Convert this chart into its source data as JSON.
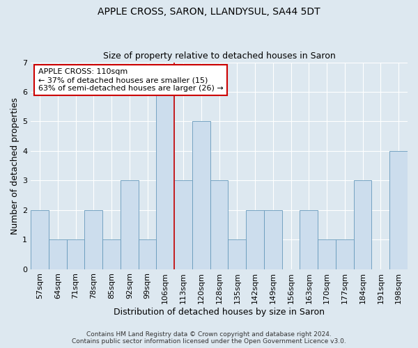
{
  "title": "APPLE CROSS, SARON, LLANDYSUL, SA44 5DT",
  "subtitle": "Size of property relative to detached houses in Saron",
  "xlabel": "Distribution of detached houses by size in Saron",
  "ylabel": "Number of detached properties",
  "categories": [
    "57sqm",
    "64sqm",
    "71sqm",
    "78sqm",
    "85sqm",
    "92sqm",
    "99sqm",
    "106sqm",
    "113sqm",
    "120sqm",
    "128sqm",
    "135sqm",
    "142sqm",
    "149sqm",
    "156sqm",
    "163sqm",
    "170sqm",
    "177sqm",
    "184sqm",
    "191sqm",
    "198sqm"
  ],
  "values": [
    2,
    1,
    1,
    2,
    1,
    3,
    1,
    6,
    3,
    5,
    3,
    1,
    2,
    2,
    0,
    2,
    1,
    1,
    3,
    0,
    4
  ],
  "bar_color": "#ccdded",
  "bar_edge_color": "#6699bb",
  "marker_index": 7,
  "marker_color": "#cc0000",
  "annotation_title": "APPLE CROSS: 110sqm",
  "annotation_line1": "← 37% of detached houses are smaller (15)",
  "annotation_line2": "63% of semi-detached houses are larger (26) →",
  "annotation_box_color": "#ffffff",
  "annotation_box_edge": "#cc0000",
  "ylim": [
    0,
    7
  ],
  "yticks": [
    0,
    1,
    2,
    3,
    4,
    5,
    6,
    7
  ],
  "footer1": "Contains HM Land Registry data © Crown copyright and database right 2024.",
  "footer2": "Contains public sector information licensed under the Open Government Licence v3.0.",
  "bg_color": "#dde8f0",
  "plot_bg_color": "#dde8f0",
  "title_fontsize": 10,
  "subtitle_fontsize": 9,
  "axis_label_fontsize": 9,
  "tick_fontsize": 8,
  "annot_fontsize": 8,
  "footer_fontsize": 6.5
}
